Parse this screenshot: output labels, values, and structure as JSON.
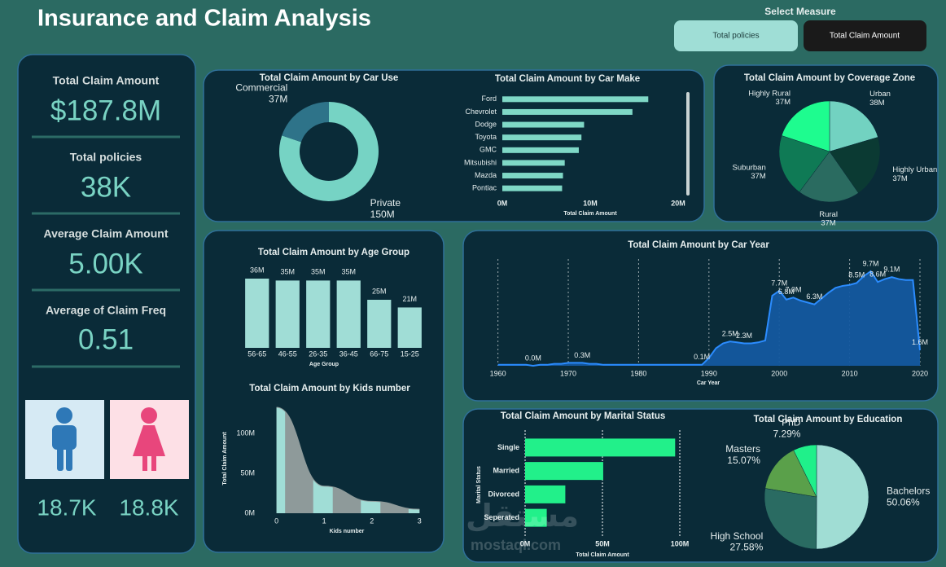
{
  "header": {
    "title": "Insurance and Claim Analysis",
    "measure_label": "Select Measure",
    "measures": [
      "Total policies",
      "Total Claim Amount"
    ],
    "selected": 1
  },
  "kpis": [
    {
      "label": "Total Claim Amount",
      "value": "$187.8M"
    },
    {
      "label": "Total policies",
      "value": "38K"
    },
    {
      "label": "Average Claim Amount",
      "value": "5.00K"
    },
    {
      "label": "Average of Claim Freq",
      "value": "0.51"
    }
  ],
  "gender": [
    "18.7K",
    "18.8K"
  ],
  "watermark": {
    "logo": "مستقل",
    "site": "mostaql.com"
  },
  "chart_data": [
    {
      "type": "donut",
      "title": "Total Claim Amount by Car Use",
      "categories": [
        "Private",
        "Commercial"
      ],
      "values": [
        150,
        37
      ],
      "value_labels": [
        "150M",
        "37M"
      ],
      "colors": [
        "#76d3c4",
        "#2e7389"
      ]
    },
    {
      "type": "hbar",
      "title": "Total Claim Amount by Car Make",
      "categories": [
        "Ford",
        "Chevrolet",
        "Dodge",
        "Toyota",
        "GMC",
        "Mitsubishi",
        "Mazda",
        "Pontiac"
      ],
      "values": [
        16.6,
        14.8,
        9.3,
        9.0,
        8.7,
        7.1,
        6.9,
        6.8
      ],
      "color": "#7fd8c6",
      "xlim": [
        0,
        20
      ],
      "xticks": [
        {
          "value": 0,
          "label": "0M"
        },
        {
          "value": 10,
          "label": "10M"
        },
        {
          "value": 20,
          "label": "20M"
        }
      ],
      "xlabel": "Total Claim Amount",
      "grid": false
    },
    {
      "type": "pie",
      "title": "Total Claim Amount by Coverage Zone",
      "categories": [
        "Urban",
        "Highly Urban",
        "Rural",
        "Suburban",
        "Highly Rural"
      ],
      "values": [
        38,
        37,
        37,
        37,
        37
      ],
      "value_labels": [
        "38M",
        "37M",
        "37M",
        "37M",
        "37M"
      ],
      "colors": [
        "#72d2c1",
        "#0b3a33",
        "#2a6b60",
        "#0f7a55",
        "#1efc8f"
      ]
    },
    {
      "type": "bar",
      "title": "Total Claim Amount by Age Group",
      "categories": [
        "56-65",
        "46-55",
        "26-35",
        "36-45",
        "66-75",
        "15-25"
      ],
      "values": [
        36,
        35,
        35,
        35,
        25,
        21
      ],
      "value_labels": [
        "36M",
        "35M",
        "35M",
        "35M",
        "25M",
        "21M"
      ],
      "color": "#a0ddd6",
      "xlabel": "Age Group"
    },
    {
      "type": "area",
      "title": "Total Claim Amount by Kids number",
      "x": [
        0,
        1,
        2,
        3
      ],
      "values": [
        133,
        34,
        15,
        5
      ],
      "color": "#8e9a9a",
      "band_color": "#a0ddd6",
      "smooth": true,
      "xlim": [
        -0.25,
        3.2
      ],
      "xticks": [
        0,
        1,
        2,
        3
      ],
      "ylim": [
        0,
        135
      ],
      "yticks": [
        {
          "value": 0,
          "label": "0M"
        },
        {
          "value": 50,
          "label": "50M"
        },
        {
          "value": 100,
          "label": "100M"
        }
      ],
      "xlabel": "Kids number",
      "ylabel": "Total Claim Amount"
    },
    {
      "type": "area",
      "title": "Total Claim Amount by Car Year",
      "x": [
        1960,
        1961,
        1962,
        1963,
        1964,
        1965,
        1966,
        1967,
        1968,
        1969,
        1970,
        1971,
        1972,
        1973,
        1974,
        1975,
        1976,
        1977,
        1978,
        1979,
        1980,
        1981,
        1982,
        1983,
        1984,
        1985,
        1986,
        1987,
        1988,
        1989,
        1990,
        1991,
        1992,
        1993,
        1994,
        1995,
        1996,
        1997,
        1998,
        1999,
        2000,
        2001,
        2002,
        2003,
        2004,
        2005,
        2006,
        2007,
        2008,
        2009,
        2010,
        2011,
        2012,
        2013,
        2014,
        2015,
        2016,
        2017,
        2018,
        2019,
        2020
      ],
      "values": [
        0.1,
        0.1,
        0.1,
        0.1,
        0.1,
        0.0,
        0.1,
        0.1,
        0.2,
        0.2,
        0.3,
        0.3,
        0.3,
        0.2,
        0.2,
        0.1,
        0.1,
        0.1,
        0.1,
        0.1,
        0.1,
        0.1,
        0.1,
        0.1,
        0.1,
        0.1,
        0.1,
        0.1,
        0.1,
        0.1,
        0.8,
        1.8,
        2.3,
        2.5,
        2.4,
        2.3,
        2.3,
        2.4,
        2.6,
        7.2,
        7.7,
        6.8,
        7.0,
        6.7,
        6.5,
        6.3,
        6.9,
        7.5,
        8.0,
        8.2,
        8.3,
        8.5,
        9.2,
        9.7,
        8.6,
        8.9,
        9.1,
        8.9,
        8.8,
        8.8,
        1.6
      ],
      "value_labels": [
        null,
        null,
        null,
        null,
        null,
        "0.0M",
        null,
        null,
        null,
        null,
        null,
        null,
        "0.3M",
        null,
        null,
        null,
        null,
        null,
        null,
        null,
        null,
        null,
        null,
        null,
        null,
        null,
        null,
        null,
        null,
        "0.1M",
        null,
        null,
        null,
        "2.5M",
        null,
        "2.3M",
        null,
        null,
        null,
        null,
        "7.7M",
        "6.8M",
        "7.0M",
        null,
        null,
        "6.3M",
        null,
        null,
        null,
        null,
        null,
        "8.5M",
        null,
        "9.7M",
        "8.6M",
        null,
        "9.1M",
        null,
        null,
        null,
        "1.6M"
      ],
      "color": "#14589f",
      "line_color": "#2b8cff",
      "xlim": [
        1959,
        2020
      ],
      "xticks": [
        1960,
        1970,
        1980,
        1990,
        2000,
        2010,
        2020
      ],
      "xlabel": "Car Year",
      "grid": true
    },
    {
      "type": "hbar",
      "title": "Total Claim Amount by Marital Status",
      "categories": [
        "Single",
        "Married",
        "Divorced",
        "Seperated"
      ],
      "values": [
        97,
        50.5,
        26,
        14
      ],
      "color": "#22f08a",
      "xlim": [
        0,
        100
      ],
      "xticks": [
        {
          "value": 0,
          "label": "0M"
        },
        {
          "value": 50,
          "label": "50M"
        },
        {
          "value": 100,
          "label": "100M"
        }
      ],
      "xlabel": "Total Claim Amount",
      "ylabel": "Marital Status",
      "grid": true
    },
    {
      "type": "pie",
      "title": "Total Claim Amount by Education",
      "categories": [
        "Bachelors",
        "High School",
        "Masters",
        "PhD"
      ],
      "values": [
        50.06,
        27.58,
        15.07,
        7.29
      ],
      "value_labels": [
        "50.06%",
        "27.58%",
        "15.07%",
        "7.29%"
      ],
      "colors": [
        "#a0ddd4",
        "#2a6b62",
        "#5aa04a",
        "#20f08a"
      ]
    }
  ]
}
